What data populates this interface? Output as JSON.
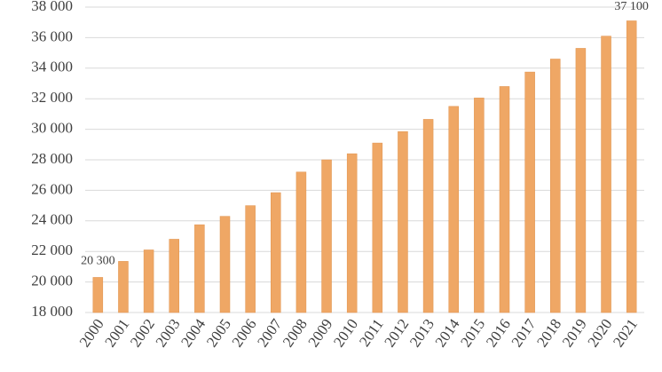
{
  "chart_data": {
    "type": "bar",
    "categories": [
      "2000",
      "2001",
      "2002",
      "2003",
      "2004",
      "2005",
      "2006",
      "2007",
      "2008",
      "2009",
      "2010",
      "2011",
      "2012",
      "2013",
      "2014",
      "2015",
      "2016",
      "2017",
      "2018",
      "2019",
      "2020",
      "2021"
    ],
    "values": [
      20300,
      21350,
      22100,
      22800,
      23750,
      24300,
      25000,
      25850,
      27200,
      28000,
      28400,
      29100,
      29850,
      30650,
      31500,
      32050,
      32800,
      33750,
      34600,
      35300,
      36100,
      37100
    ],
    "value_labels": [
      "20 300",
      null,
      null,
      null,
      null,
      null,
      null,
      null,
      null,
      null,
      null,
      null,
      null,
      null,
      null,
      null,
      null,
      null,
      null,
      null,
      null,
      "37 100"
    ],
    "color": "#efa765",
    "ylim": [
      18000,
      38000
    ],
    "yticks": [
      {
        "value": 18000,
        "label": "18 000"
      },
      {
        "value": 20000,
        "label": "20 000"
      },
      {
        "value": 22000,
        "label": "22 000"
      },
      {
        "value": 24000,
        "label": "24 000"
      },
      {
        "value": 26000,
        "label": "26 000"
      },
      {
        "value": 28000,
        "label": "28 000"
      },
      {
        "value": 30000,
        "label": "30 000"
      },
      {
        "value": 32000,
        "label": "32 000"
      },
      {
        "value": 34000,
        "label": "34 000"
      },
      {
        "value": 36000,
        "label": "36 000"
      },
      {
        "value": 38000,
        "label": "38 000"
      }
    ],
    "grid": true
  }
}
